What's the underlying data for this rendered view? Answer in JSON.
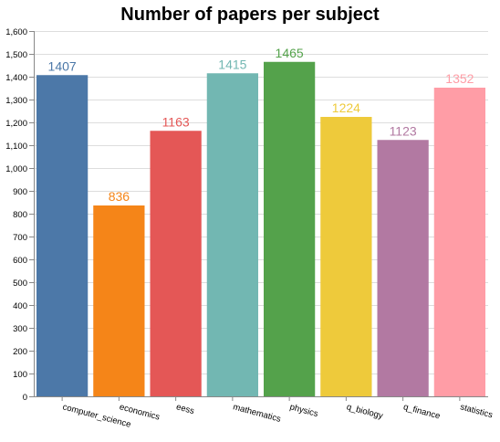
{
  "chart_data": {
    "type": "bar",
    "title": "Number of papers per subject",
    "categories": [
      "computer_science",
      "economics",
      "eess",
      "mathematics",
      "physics",
      "q_biology",
      "q_finance",
      "statistics"
    ],
    "values": [
      1407,
      836,
      1163,
      1415,
      1465,
      1224,
      1123,
      1352
    ],
    "colors": [
      "#4c78a8",
      "#f58518",
      "#e45756",
      "#72b7b2",
      "#54a24b",
      "#eeca3b",
      "#b279a2",
      "#ff9da6"
    ],
    "ylim": [
      0,
      1600
    ],
    "yticks": [
      0,
      100,
      200,
      300,
      400,
      500,
      600,
      700,
      800,
      900,
      1000,
      1100,
      1200,
      1300,
      1400,
      1500,
      1600
    ],
    "ytick_labels": [
      "0",
      "100",
      "200",
      "300",
      "400",
      "500",
      "600",
      "700",
      "800",
      "900",
      "1,000",
      "1,100",
      "1,200",
      "1,300",
      "1,400",
      "1,500",
      "1,600"
    ],
    "grid": true,
    "xlabel": "",
    "ylabel": ""
  }
}
